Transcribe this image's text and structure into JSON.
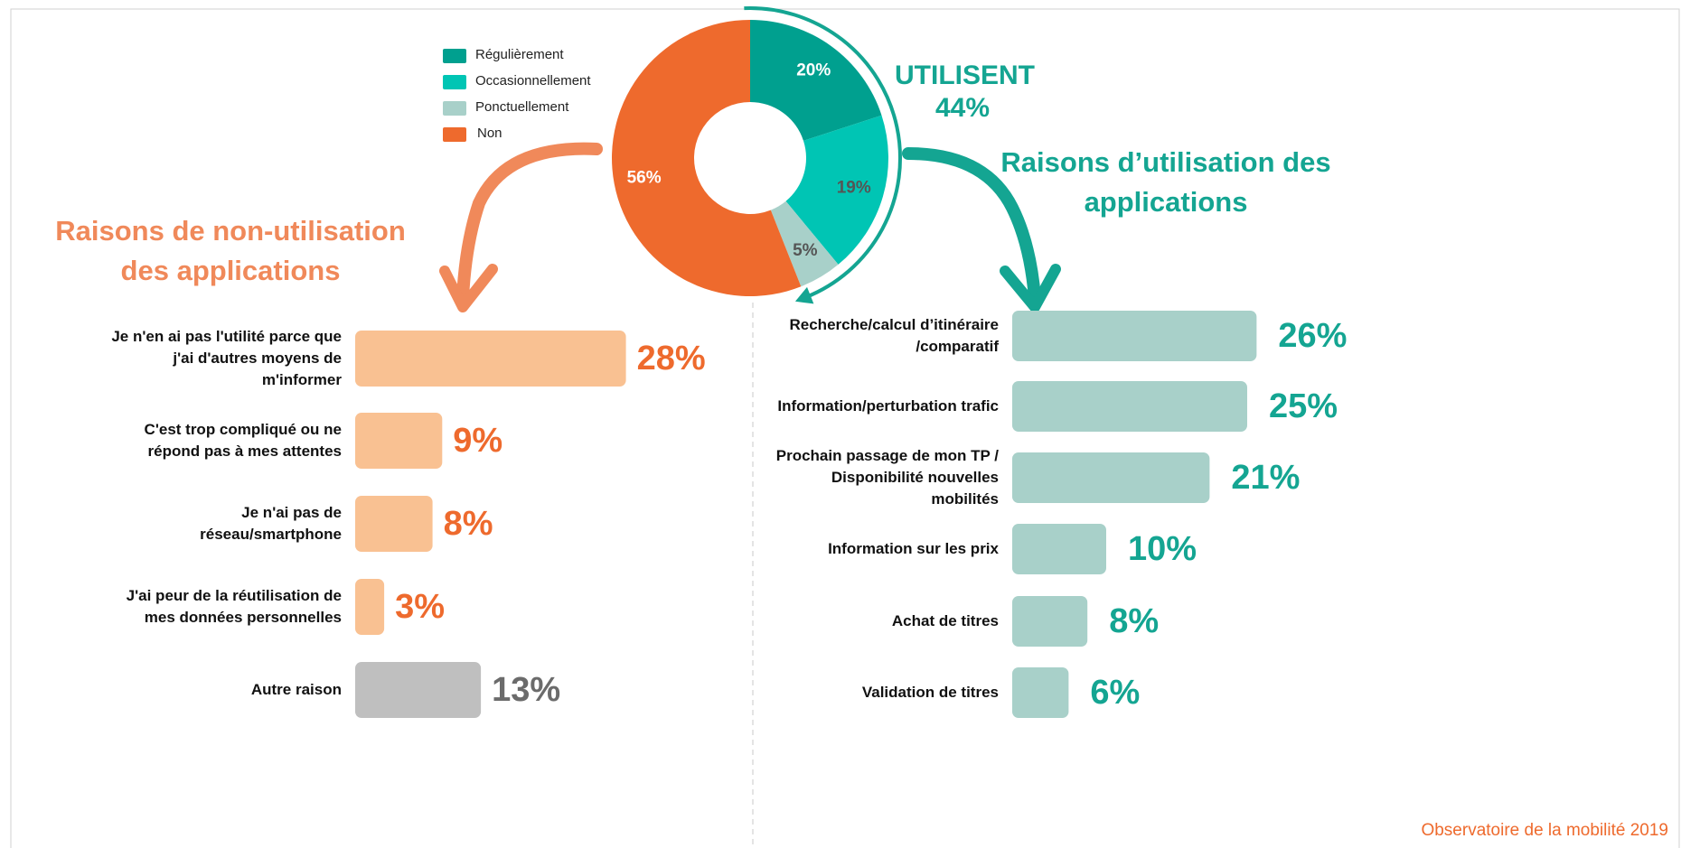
{
  "chart_data": [
    {
      "type": "donut",
      "categories": [
        "Régulièrement",
        "Occasionnellement",
        "Ponctuellement",
        "Non"
      ],
      "values": [
        20,
        19,
        5,
        56
      ],
      "value_labels": [
        "20%",
        "19%",
        "5%",
        "56%"
      ],
      "colors": [
        "#00a08f",
        "#00c5b4",
        "#a8d0c9",
        "#ee6a2d"
      ],
      "value_label_colors": [
        "#ffffff",
        "#555555",
        "#555555",
        "#ffffff"
      ],
      "used_label": "UTILISENT",
      "used_share": {
        "value": 44,
        "label": "44%"
      },
      "used_color": "#14a592"
    },
    {
      "type": "hbar",
      "title": "Raisons de non-utilisation des applications",
      "categories": [
        "Je n'en ai pas l'utilité parce que j'ai d'autres moyens de m'informer",
        "C'est trop compliqué ou ne répond pas à mes attentes",
        "Je n'ai pas de réseau/smartphone",
        "J'ai peur de la réutilisation de mes données personnelles",
        "Autre raison"
      ],
      "values": [
        28,
        9,
        8,
        3,
        13
      ],
      "value_labels": [
        "28%",
        "9%",
        "8%",
        "3%",
        "13%"
      ],
      "colors": [
        "#f9c192",
        "#f9c192",
        "#f9c192",
        "#f9c192",
        "#bfbfbf"
      ],
      "value_label_colors": [
        "#ee6a2d",
        "#ee6a2d",
        "#ee6a2d",
        "#ee6a2d",
        "#6b6b6b"
      ],
      "title_color": "#f0895a"
    },
    {
      "type": "hbar",
      "title": "Raisons d’utilisation des applications",
      "categories": [
        "Recherche/calcul d’itinéraire /comparatif",
        "Information/perturbation trafic",
        "Prochain passage de mon TP / Disponibilité nouvelles mobilités",
        "Information sur les prix",
        "Achat de titres",
        "Validation de titres"
      ],
      "values": [
        26,
        25,
        21,
        10,
        8,
        6
      ],
      "value_labels": [
        "26%",
        "25%",
        "21%",
        "10%",
        "8%",
        "6%"
      ],
      "colors": [
        "#a8d0c9",
        "#a8d0c9",
        "#a8d0c9",
        "#a8d0c9",
        "#a8d0c9",
        "#a8d0c9"
      ],
      "value_label_colors": [
        "#14a592",
        "#14a592",
        "#14a592",
        "#14a592",
        "#14a592",
        "#14a592"
      ],
      "title_color": "#14a592"
    }
  ],
  "source": "Observatoire de la mobilité 2019"
}
